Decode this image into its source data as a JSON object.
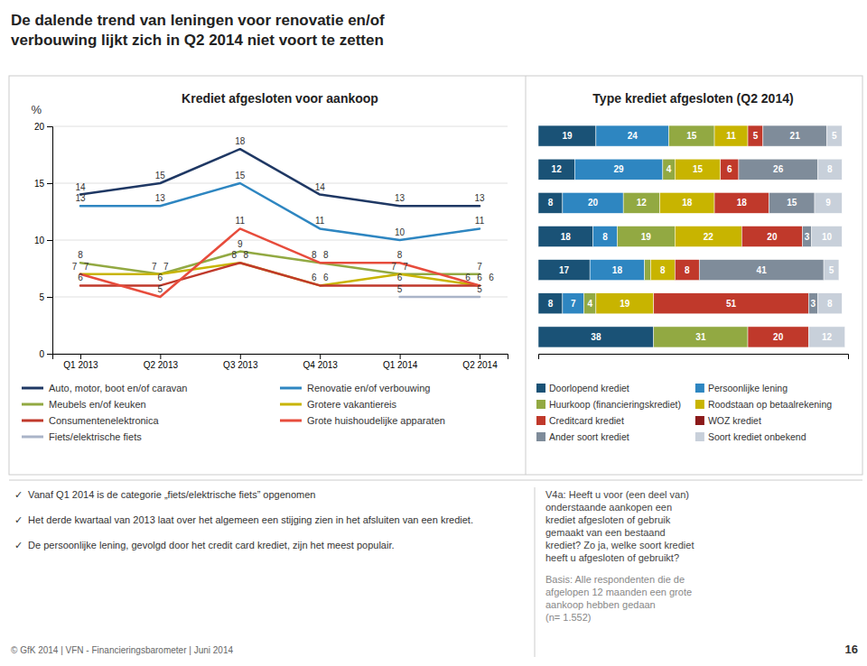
{
  "title": [
    "De dalende trend van leningen voor renovatie en/of",
    "verbouwing lijkt zich in Q2 2014 niet voort te zetten"
  ],
  "chart_data": [
    {
      "type": "line",
      "title": "Krediet afgesloten voor aankoop",
      "ylabel": "%",
      "categories": [
        "Q1 2013",
        "Q2 2013",
        "Q3 2013",
        "Q4 2013",
        "Q1 2014",
        "Q2 2014"
      ],
      "series": [
        {
          "name": "Auto, motor, boot en/of caravan",
          "color": "#1f3864",
          "values": [
            14,
            15,
            18,
            14,
            13,
            13
          ]
        },
        {
          "name": "Renovatie en/of verbouwing",
          "color": "#2e86c1",
          "values": [
            13,
            13,
            15,
            11,
            10,
            11
          ]
        },
        {
          "name": "Meubels en/of keuken",
          "color": "#92a942",
          "values": [
            8,
            7,
            9,
            8,
            7,
            7
          ]
        },
        {
          "name": "Grotere vakantiereis",
          "color": "#c8b400",
          "values": [
            7,
            7,
            8,
            6,
            7,
            6
          ]
        },
        {
          "name": "Consumentenelektronica",
          "color": "#c0392b",
          "values": [
            6,
            6,
            8,
            6,
            6,
            6
          ]
        },
        {
          "name": "Grote huishoudelijke apparaten",
          "color": "#e74c3c",
          "values": [
            7,
            5,
            11,
            8,
            8,
            6
          ]
        },
        {
          "name": "Fiets/elektrische fiets",
          "color": "#aab4c8",
          "values": [
            null,
            null,
            null,
            null,
            5,
            5
          ]
        }
      ],
      "ylim": [
        0,
        20
      ],
      "yticks": [
        0,
        5,
        10,
        15,
        20
      ],
      "grid": true,
      "data_labels": true,
      "legend": "bottom"
    },
    {
      "type": "bar",
      "orientation": "horizontal",
      "stacked": true,
      "title": "Type krediet afgesloten (Q2 2014)",
      "categories": [
        null,
        null,
        null,
        null,
        null,
        null,
        null
      ],
      "series": [
        {
          "name": "Doorlopend krediet",
          "color": "#1a5276",
          "values": [
            19,
            12,
            8,
            18,
            17,
            8,
            38
          ]
        },
        {
          "name": "Persoonlijke lening",
          "color": "#2e86c1",
          "values": [
            24,
            29,
            20,
            8,
            18,
            7,
            0
          ]
        },
        {
          "name": "Huurkoop (financieringskrediet)",
          "color": "#92a942",
          "values": [
            15,
            4,
            12,
            19,
            2,
            4,
            31
          ]
        },
        {
          "name": "Roodstaan op betaalrekening",
          "color": "#c8b400",
          "values": [
            11,
            15,
            18,
            22,
            8,
            19,
            0
          ]
        },
        {
          "name": "Creditcard krediet",
          "color": "#c0392b",
          "values": [
            5,
            6,
            18,
            20,
            8,
            51,
            20
          ]
        },
        {
          "name": "WOZ krediet",
          "color": "#8b1a1a",
          "values": [
            null,
            null,
            null,
            null,
            null,
            null,
            null
          ]
        },
        {
          "name": "Ander soort krediet",
          "color": "#7f8c9a",
          "values": [
            21,
            26,
            15,
            3,
            41,
            3,
            0
          ]
        },
        {
          "name": "Soort krediet onbekend",
          "color": "#c8d0da",
          "values": [
            5,
            8,
            9,
            10,
            5,
            8,
            12
          ]
        }
      ],
      "xlim": [
        0,
        102
      ],
      "tick_labels": false,
      "data_labels": true,
      "legend": "bottom"
    }
  ],
  "notes": [
    "✓  Vanaf Q1 2014 is de categorie „fiets/elektrische fiets” opgenomen",
    "✓  Het derde kwartaal van 2013 laat over het algemeen een stijging zien in het afsluiten van een krediet.",
    "✓  De persoonlijke lening, gevolgd door het credit card krediet, zijn het meest populair."
  ],
  "source": "© GfK 2014 | VFN - Financieringsbarometer | Juni 2014",
  "question": "V4a: Heeft u voor (een deel van)\nonderstaande aankopen een\nkrediet afgesloten of gebruik\ngemaakt van een bestaand\nkrediet? Zo ja, welke soort krediet\nheeft u afgesloten of gebruikt?",
  "basis": "Basis: Alle respondenten die de\nafgelopen 12 maanden een grote\naankoop hebben gedaan\n(n= 1.552)",
  "page": "16"
}
